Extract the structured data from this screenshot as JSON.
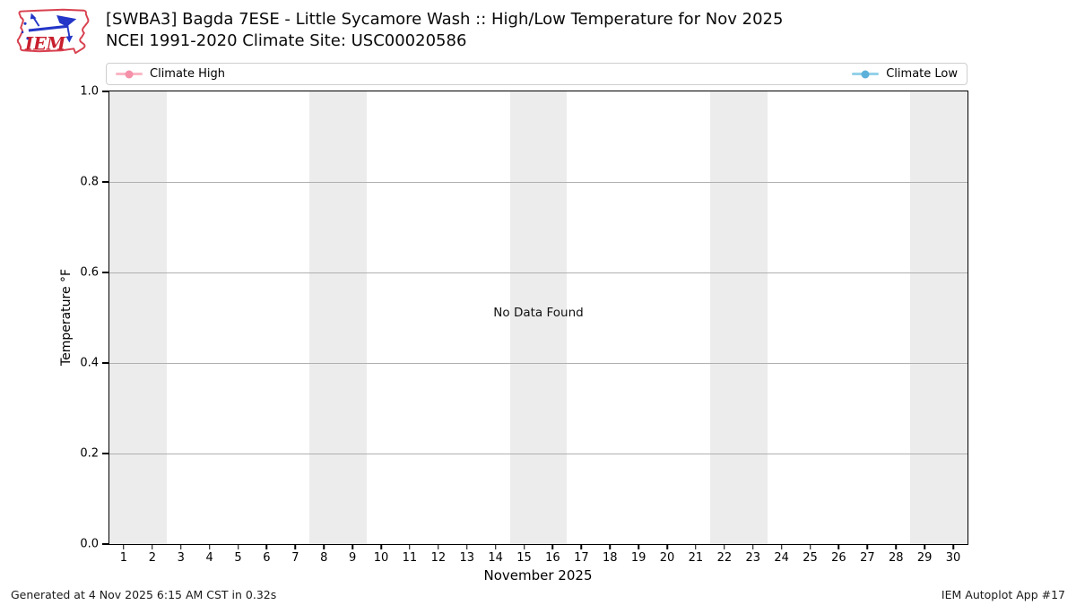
{
  "header": {
    "logo_text": "IEM",
    "logo_outline_color": "#d8404f",
    "logo_vane_color": "#2436c7",
    "logo_text_color": "#c81f2e"
  },
  "chart_data": {
    "type": "line",
    "title": "[SWBA3] Bagda 7ESE - Little Sycamore Wash :: High/Low Temperature for Nov 2025",
    "subtitle": "NCEI 1991-2020 Climate Site: USC00020586",
    "xlabel": "November 2025",
    "ylabel": "Temperature °F",
    "no_data_text": "No Data Found",
    "xlim": [
      0.5,
      30.5
    ],
    "ylim": [
      0.0,
      1.0
    ],
    "x_ticks": [
      1,
      2,
      3,
      4,
      5,
      6,
      7,
      8,
      9,
      10,
      11,
      12,
      13,
      14,
      15,
      16,
      17,
      18,
      19,
      20,
      21,
      22,
      23,
      24,
      25,
      26,
      27,
      28,
      29,
      30
    ],
    "y_ticks": [
      "1.0",
      "0.8",
      "0.6",
      "0.4",
      "0.2",
      "0.0"
    ],
    "grid": true,
    "grid_color": "#b0b0b0",
    "shade_color": "#ececec",
    "shaded_day_ranges": [
      [
        0.5,
        2.5
      ],
      [
        7.5,
        9.5
      ],
      [
        14.5,
        16.5
      ],
      [
        21.5,
        23.5
      ],
      [
        28.5,
        30.5
      ]
    ],
    "legend_position": "top",
    "series": [
      {
        "name": "Climate High",
        "line_color": "#fab6c4",
        "marker_color": "#f590a9",
        "values": []
      },
      {
        "name": "Climate Low",
        "line_color": "#94d1ea",
        "marker_color": "#5cb1da",
        "values": []
      }
    ]
  },
  "footer": {
    "generated": "Generated at 4 Nov 2025 6:15 AM CST in 0.32s",
    "app": "IEM Autoplot App #17"
  }
}
